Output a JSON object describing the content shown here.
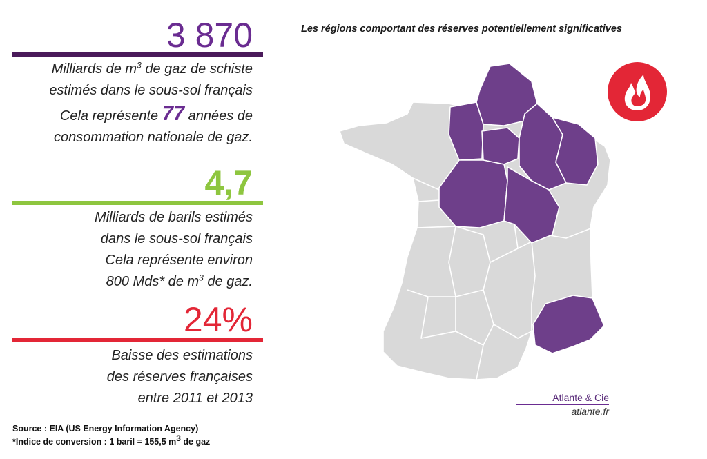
{
  "colors": {
    "purple": "#6a2c91",
    "purple_bar": "#4a1a5a",
    "green": "#8ec63f",
    "red": "#e32636",
    "map_grey": "#d9d9d9",
    "region_purple": "#6e3f8a",
    "icon": "flame-icon"
  },
  "stats": [
    {
      "value": "3 870",
      "lines": [
        {
          "before": "Milliards de m",
          "sup": "3",
          "after": " de gaz de schiste"
        },
        {
          "text": "estimés dans le sous-sol français"
        },
        {
          "before": "Cela représente ",
          "bold": "77",
          "after": " années de"
        },
        {
          "text": "consommation nationale de gaz."
        }
      ]
    },
    {
      "value": "4,7",
      "lines": [
        {
          "text": "Milliards de barils estimés"
        },
        {
          "text": "dans le sous-sol français"
        },
        {
          "text": "Cela représente environ"
        },
        {
          "before": "800 Mds* de m",
          "sup": "3",
          "after": " de gaz."
        }
      ]
    },
    {
      "value": "24%",
      "lines": [
        {
          "text": "Baisse des estimations"
        },
        {
          "text": "des réserves françaises"
        },
        {
          "text": "entre 2011 et 2013"
        }
      ]
    }
  ],
  "map": {
    "title": "Les régions comportant des réserves potentiellement significatives"
  },
  "credit": {
    "brand": "Atlante & Cie",
    "site": "atlante.fr"
  },
  "footnotes": {
    "source": "Source : EIA (US Energy Information Agency)",
    "conversion_before": "*Indice de conversion : 1 baril = 155,5 m",
    "conversion_sup": "3",
    "conversion_after": " de gaz"
  }
}
